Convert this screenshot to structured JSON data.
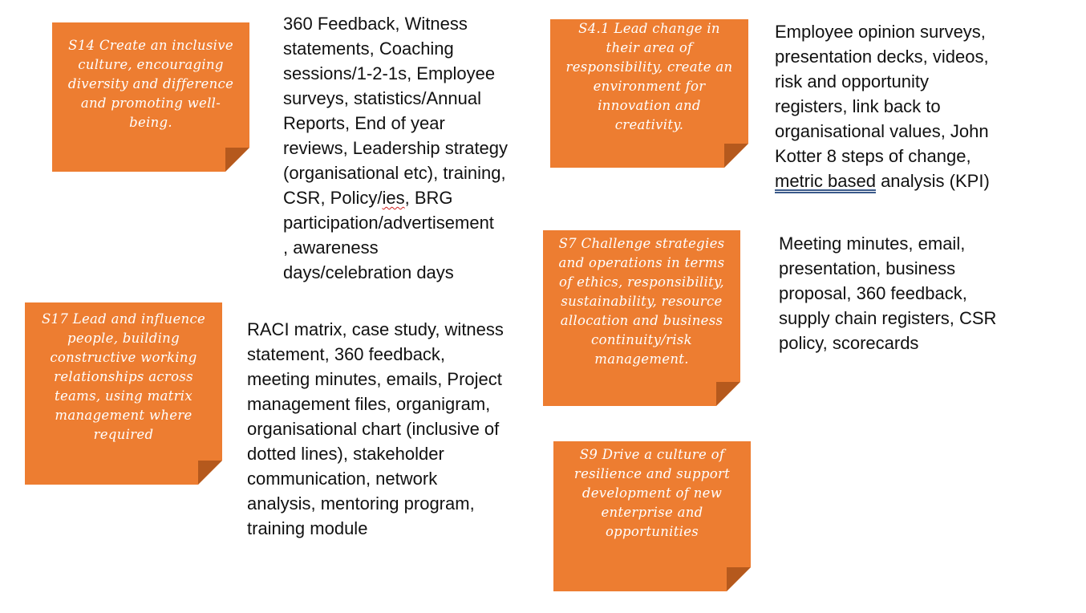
{
  "notes": [
    {
      "id": "s14",
      "text": "S14 Create an inclusive\nculture, encouraging\ndiversity and difference\nand promoting well-\nbeing."
    },
    {
      "id": "s4-1",
      "text": "S4.1 Lead change in\ntheir area of\nresponsibility, create an\nenvironment for\ninnovation and\ncreativity."
    },
    {
      "id": "s17",
      "text": "S17 Lead and influence\npeople, building\nconstructive working\nrelationships across\nteams, using matrix\nmanagement where\nrequired"
    },
    {
      "id": "s7",
      "text": "S7 Challenge strategies\nand operations in terms\nof ethics, responsibility,\nsustainability, resource\nallocation and business\ncontinuity/risk\nmanagement."
    },
    {
      "id": "s9",
      "text": "S9 Drive a culture of\nresilience and support\ndevelopment of new\nenterprise and\nopportunities"
    }
  ],
  "evidence": {
    "s14": {
      "before_flag": "360 Feedback, Witness\nstatements, Coaching\nsessions/1-2-1s, Employee\nsurveys, statistics/Annual\nReports, End of year\nreviews, Leadership strategy\n(organisational etc), training,\nCSR, Policy/",
      "flagged": "ies",
      "after_flag": ", BRG\nparticipation/advertisement\n, awareness\ndays/celebration days"
    },
    "s4_1": {
      "before_flag": "Employee opinion surveys,\npresentation decks, videos,\nrisk and opportunity\nregisters, link back to\norganisational values, John\nKotter 8 steps of change,\n",
      "flagged": "metric based",
      "after_flag": " analysis (KPI)"
    },
    "s17": "RACI matrix, case study, witness\nstatement, 360 feedback,\nmeeting minutes, emails, Project\nmanagement files, organigram,\norganisational chart (inclusive of\ndotted lines), stakeholder\ncommunication, network\nanalysis, mentoring program,\ntraining module",
    "s7": "Meeting minutes, email,\npresentation, business\nproposal, 360 feedback,\nsupply chain registers, CSR\npolicy, scorecards"
  },
  "colors": {
    "note_fill": "#ED7D31",
    "note_fold": "#B5591D",
    "note_text": "#ffffff",
    "body_text": "#111111"
  }
}
